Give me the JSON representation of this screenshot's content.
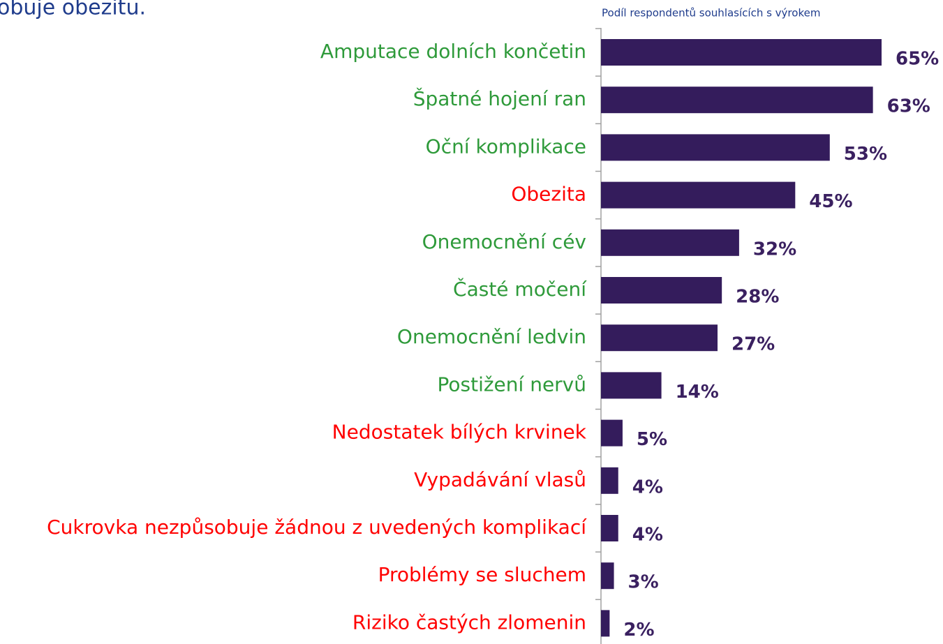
{
  "chart_data": {
    "type": "bar",
    "orientation": "horizontal",
    "title": "obuje obezitu.",
    "subtitle": "Podíl respondentů souhlasících s výrokem",
    "categories": [
      "Amputace dolních končetin",
      "Špatné hojení ran",
      "Oční komplikace",
      "Obezita",
      "Onemocnění cév",
      "Časté močení",
      "Onemocnění ledvin",
      "Postižení nervů",
      "Nedostatek bílých krvinek",
      "Vypadávání vlasů",
      "Cukrovka nezpůsobuje žádnou z uvedených komplikací",
      "Problémy se sluchem",
      "Riziko častých zlomenin"
    ],
    "values": [
      65,
      63,
      53,
      45,
      32,
      28,
      27,
      14,
      5,
      4,
      4,
      3,
      2
    ],
    "value_labels": [
      "65%",
      "63%",
      "53%",
      "45%",
      "32%",
      "28%",
      "27%",
      "14%",
      "5%",
      "4%",
      "4%",
      "3%",
      "2%"
    ],
    "color": "#341c5c",
    "label_colors": [
      "#2e9a3a",
      "#2e9a3a",
      "#2e9a3a",
      "#ff0000",
      "#2e9a3a",
      "#2e9a3a",
      "#2e9a3a",
      "#2e9a3a",
      "#ff0000",
      "#ff0000",
      "#ff0000",
      "#ff0000",
      "#ff0000"
    ]
  }
}
